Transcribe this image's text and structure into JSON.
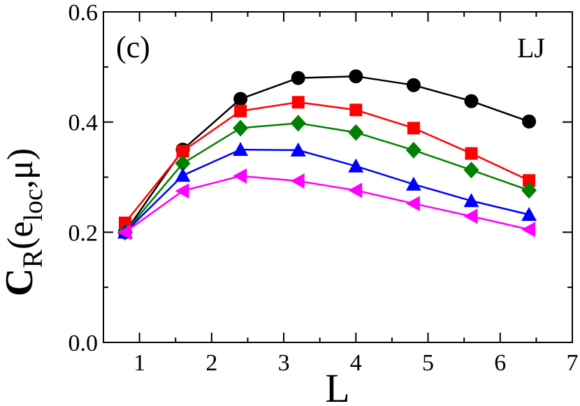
{
  "chart_data": {
    "type": "line",
    "title": "",
    "panel_label": "(c)",
    "annotation": "LJ",
    "xlabel": "L",
    "ylabel": {
      "main": "C",
      "main_sub": "R",
      "open": "(e",
      "sub": "loc",
      "close": ",μ)"
    },
    "xlim": [
      0.5,
      7
    ],
    "ylim": [
      0.0,
      0.6
    ],
    "xticks": [
      1,
      2,
      3,
      4,
      5,
      6,
      7
    ],
    "xtick_labels": [
      "1",
      "2",
      "3",
      "4",
      "5",
      "6",
      "7"
    ],
    "yticks": [
      0.0,
      0.2,
      0.4,
      0.6
    ],
    "ytick_labels": [
      "0.0",
      "0.2",
      "0.4",
      "0.6"
    ],
    "grid": false,
    "x": [
      0.8,
      1.6,
      2.4,
      3.2,
      4.0,
      4.8,
      5.6,
      6.4
    ],
    "series": [
      {
        "name": "black circles",
        "color": "#000000",
        "marker": "circle",
        "values": [
          0.2,
          0.35,
          0.442,
          0.48,
          0.483,
          0.467,
          0.438,
          0.401
        ]
      },
      {
        "name": "red squares",
        "color": "#ff0000",
        "marker": "square",
        "values": [
          0.217,
          0.347,
          0.42,
          0.436,
          0.422,
          0.389,
          0.343,
          0.294
        ]
      },
      {
        "name": "green diamonds",
        "color": "#008000",
        "marker": "diamond",
        "values": [
          0.2,
          0.325,
          0.389,
          0.398,
          0.381,
          0.349,
          0.313,
          0.276
        ]
      },
      {
        "name": "blue triangles up",
        "color": "#0000ff",
        "marker": "triangle-up",
        "values": [
          0.2,
          0.303,
          0.35,
          0.349,
          0.32,
          0.287,
          0.257,
          0.232
        ]
      },
      {
        "name": "magenta triangles left",
        "color": "#ff00ff",
        "marker": "triangle-left",
        "values": [
          0.2,
          0.275,
          0.302,
          0.293,
          0.276,
          0.252,
          0.229,
          0.205
        ]
      }
    ]
  }
}
